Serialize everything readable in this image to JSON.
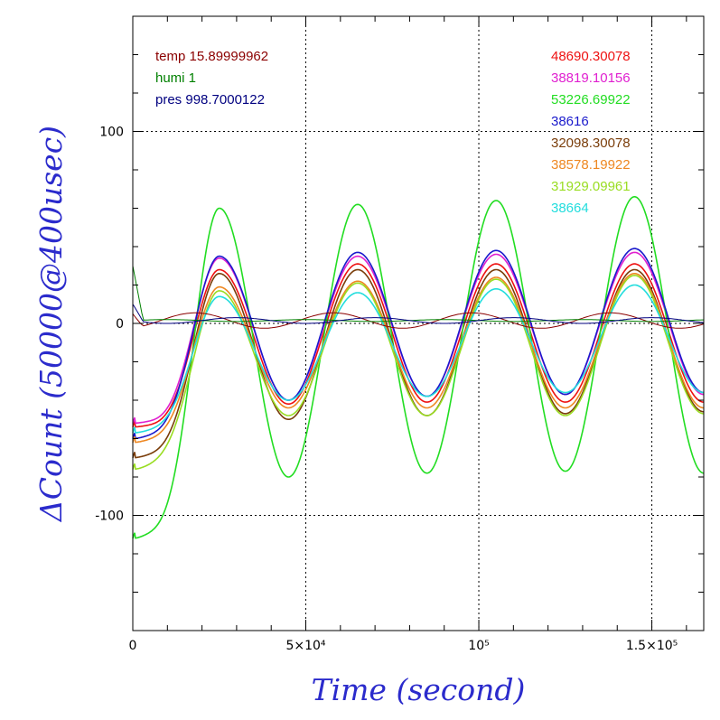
{
  "chart_data": {
    "type": "line",
    "xlabel": "Time (second)",
    "ylabel": "ΔCount (50000@400usec)",
    "xlim": [
      0,
      165000
    ],
    "ylim": [
      -160,
      160
    ],
    "grid": true,
    "x_ticks": [
      {
        "value": 0,
        "label": "0"
      },
      {
        "value": 50000,
        "label": "5×10⁴"
      },
      {
        "value": 100000,
        "label": "10⁵"
      },
      {
        "value": 150000,
        "label": "1.5×10⁵"
      }
    ],
    "y_ticks": [
      {
        "value": -100,
        "label": "-100"
      },
      {
        "value": 0,
        "label": "0"
      },
      {
        "value": 100,
        "label": "100"
      }
    ],
    "env_legend": [
      {
        "label": "temp 15.89999962",
        "color": "#8b0000"
      },
      {
        "label": "humi 1",
        "color": "#008000"
      },
      {
        "label": "pres 998.7000122",
        "color": "#000080"
      }
    ],
    "series_legend": [
      {
        "label": "48690.30078",
        "color": "#ee1111"
      },
      {
        "label": "38819.10156",
        "color": "#e020d0"
      },
      {
        "label": "53226.69922",
        "color": "#22dd22"
      },
      {
        "label": "38616",
        "color": "#1a1acc"
      },
      {
        "label": "32098.30078",
        "color": "#7a3d0a"
      },
      {
        "label": "38578.19922",
        "color": "#ee8822"
      },
      {
        "label": "31929.09961",
        "color": "#99dd22"
      },
      {
        "label": "38664",
        "color": "#22dddd"
      }
    ],
    "series": [
      {
        "name": "48690.30078",
        "color": "#ee1111",
        "start": -54,
        "amplitude": 29,
        "peaks": [
          28,
          31,
          31,
          31
        ],
        "troughs": [
          -42,
          -41,
          -41,
          -41
        ]
      },
      {
        "name": "38819.10156",
        "color": "#e020d0",
        "start": -52,
        "amplitude": 34,
        "peaks": [
          34,
          35,
          36,
          37
        ],
        "troughs": [
          -40,
          -38,
          -37,
          -37
        ]
      },
      {
        "name": "53226.69922",
        "color": "#22dd22",
        "start": -112,
        "amplitude": 64,
        "peaks": [
          60,
          62,
          64,
          66
        ],
        "troughs": [
          -80,
          -78,
          -77,
          -78
        ]
      },
      {
        "name": "38616",
        "color": "#1a1acc",
        "start": -60,
        "amplitude": 37,
        "peaks": [
          35,
          37,
          38,
          39
        ],
        "troughs": [
          -40,
          -38,
          -37,
          -36
        ]
      },
      {
        "name": "32098.30078",
        "color": "#7a3d0a",
        "start": -70,
        "amplitude": 30,
        "peaks": [
          26,
          28,
          28,
          28
        ],
        "troughs": [
          -50,
          -48,
          -47,
          -46
        ]
      },
      {
        "name": "38578.19922",
        "color": "#ee8822",
        "start": -62,
        "amplitude": 24,
        "peaks": [
          19,
          22,
          24,
          26
        ],
        "troughs": [
          -44,
          -44,
          -44,
          -44
        ]
      },
      {
        "name": "31929.09961",
        "color": "#99dd22",
        "start": -76,
        "amplitude": 22,
        "peaks": [
          17,
          21,
          23,
          25
        ],
        "troughs": [
          -48,
          -48,
          -48,
          -47
        ]
      },
      {
        "name": "38664",
        "color": "#22dddd",
        "start": -57,
        "amplitude": 17,
        "peaks": [
          14,
          16,
          18,
          20
        ],
        "troughs": [
          -40,
          -38,
          -36,
          -36
        ]
      }
    ],
    "env_series": [
      {
        "name": "temp 15.89999962",
        "color": "#8b0000",
        "start": 5,
        "amplitude": 4,
        "phase_shift": 8000
      },
      {
        "name": "humi 1",
        "color": "#008000",
        "start": 30,
        "amplitude": 0.5,
        "phase_shift": 0
      },
      {
        "name": "pres 998.7000122",
        "color": "#000080",
        "start": 10,
        "amplitude": 1.5,
        "phase_shift": 20000
      }
    ]
  }
}
